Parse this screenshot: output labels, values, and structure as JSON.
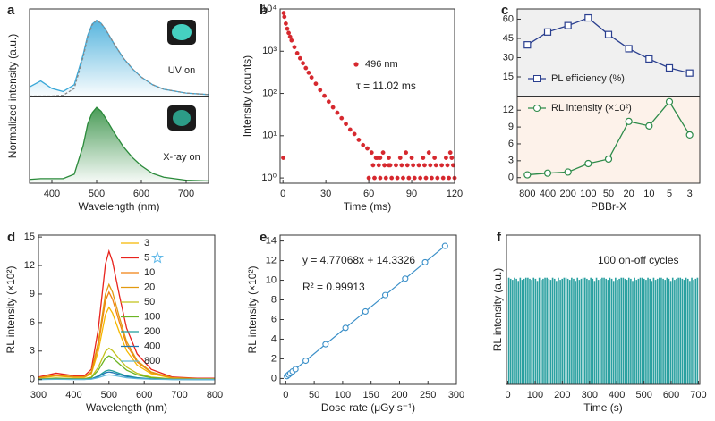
{
  "chart_data": [
    {
      "type": "line",
      "label": "a",
      "y_label": "Normalized intensity (a.u.)",
      "x_label": "Wavelength (nm)",
      "xlim": [
        350,
        750
      ],
      "xticks": [
        400,
        500,
        600,
        700
      ],
      "ylim": [
        0,
        1.15
      ],
      "y2lim": [
        0,
        1.15
      ],
      "x": [
        350,
        375,
        400,
        425,
        450,
        470,
        480,
        490,
        500,
        510,
        520,
        540,
        560,
        580,
        600,
        625,
        650,
        700,
        750
      ],
      "series": [
        {
          "name": "UV on",
          "color": "#3aa8d8",
          "fill": true,
          "values": [
            0.12,
            0.2,
            0.1,
            0.06,
            0.15,
            0.55,
            0.8,
            0.95,
            1.0,
            0.96,
            0.88,
            0.68,
            0.5,
            0.36,
            0.25,
            0.15,
            0.09,
            0.04,
            0.02
          ]
        },
        {
          "color": "#888888",
          "dash": true,
          "values": [
            0,
            0,
            0,
            0.01,
            0.1,
            0.52,
            0.78,
            0.94,
            1.0,
            0.96,
            0.88,
            0.68,
            0.5,
            0.36,
            0.25,
            0.15,
            0.09,
            0.04,
            0.02
          ]
        },
        {
          "name": "X-ray on",
          "color": "#2a8a3a",
          "fill": true,
          "axis": "y2",
          "values": [
            0.05,
            0.06,
            0.06,
            0.06,
            0.12,
            0.5,
            0.78,
            0.93,
            1.0,
            0.95,
            0.86,
            0.66,
            0.48,
            0.34,
            0.23,
            0.13,
            0.08,
            0.04,
            0.03
          ]
        }
      ]
    },
    {
      "type": "scatter",
      "label": "b",
      "log_y": true,
      "y_label": "Intensity (counts)",
      "x_label": "Time (ms)",
      "xlim": [
        -2,
        120
      ],
      "xticks": [
        0,
        30,
        60,
        90,
        120
      ],
      "ylim": [
        0.75,
        10000
      ],
      "yticks": [
        {
          "value": 1,
          "label": "10⁰"
        },
        {
          "value": 10,
          "label": "10¹"
        },
        {
          "value": 100,
          "label": "10²"
        },
        {
          "value": 1000,
          "label": "10³"
        },
        {
          "value": 10000,
          "label": "10⁴"
        }
      ],
      "annotations": [
        "τ = 11.02 ms"
      ],
      "series": [
        {
          "name": "496 nm",
          "color": "#d6282e",
          "x": [
            0.5,
            1,
            2,
            3,
            4,
            5,
            6,
            8,
            10,
            12,
            14,
            16,
            18,
            20,
            23,
            26,
            29,
            32,
            35,
            38,
            41,
            44,
            47,
            50,
            53,
            56,
            59,
            62,
            65,
            68,
            71,
            74,
            60,
            64,
            68,
            72,
            76,
            80,
            84,
            88,
            92,
            96,
            100,
            104,
            108,
            112,
            116,
            120,
            63,
            67,
            71,
            75,
            79,
            83,
            87,
            91,
            95,
            99,
            103,
            107,
            111,
            115,
            119,
            66,
            74,
            82,
            90,
            98,
            106,
            114,
            118,
            70,
            86,
            102,
            117,
            0.2
          ],
          "values": [
            8000,
            6500,
            4500,
            3400,
            2700,
            2200,
            1800,
            1250,
            900,
            680,
            520,
            400,
            310,
            240,
            170,
            120,
            88,
            64,
            47,
            35,
            26,
            19,
            14,
            11,
            8,
            6,
            5,
            4,
            3,
            3,
            2,
            2,
            1,
            1,
            1,
            1,
            1,
            1,
            1,
            1,
            1,
            1,
            1,
            1,
            1,
            1,
            1,
            1,
            2,
            2,
            2,
            2,
            2,
            2,
            2,
            2,
            2,
            2,
            2,
            2,
            2,
            2,
            2,
            3,
            3,
            3,
            3,
            3,
            3,
            3,
            3,
            4,
            4,
            4,
            4,
            3
          ]
        }
      ]
    },
    {
      "type": "line",
      "label": "c",
      "x_label": "PBBr-X",
      "categories": [
        "800",
        "400",
        "200",
        "100",
        "50",
        "20",
        "10",
        "5",
        "3"
      ],
      "ylim": [
        0,
        68
      ],
      "yticks": [
        15,
        30,
        45,
        60
      ],
      "y2lim": [
        -1,
        14.5
      ],
      "y2ticks": [
        0,
        3,
        6,
        9,
        12
      ],
      "background": [
        "#f0f0f0",
        "#fdf2ea"
      ],
      "series": [
        {
          "name": "PL efficiency (%)",
          "color": "#2a3f8f",
          "marker": "square",
          "values": [
            40,
            50,
            55,
            61,
            48,
            37,
            29,
            22,
            18
          ]
        },
        {
          "name": "RL intensity (×10²)",
          "color": "#2e8b4a",
          "marker": "circle",
          "axis": "y2",
          "values": [
            0.5,
            0.8,
            1.0,
            2.5,
            3.3,
            10,
            9.2,
            13.5,
            7.6
          ]
        }
      ]
    },
    {
      "type": "line",
      "label": "d",
      "y_label": "RL intensity (×10²)",
      "x_label": "Wavelength (nm)",
      "xlim": [
        300,
        800
      ],
      "xticks": [
        300,
        400,
        500,
        600,
        700,
        800
      ],
      "ylim": [
        -0.5,
        15.2
      ],
      "yticks": [
        0,
        3,
        6,
        9,
        12,
        15
      ],
      "x": [
        300,
        350,
        400,
        430,
        450,
        470,
        490,
        500,
        510,
        530,
        550,
        580,
        620,
        680,
        750,
        800
      ],
      "series": [
        {
          "name": "3",
          "color": "#f5b800",
          "values": [
            0.15,
            0.38,
            0.23,
            0.23,
            0.61,
            3.04,
            6.84,
            7.6,
            6.99,
            4.94,
            3.04,
            1.52,
            0.61,
            0.15,
            0.08,
            0.08
          ]
        },
        {
          "name": "5",
          "color": "#e8221c",
          "values": [
            0.27,
            0.68,
            0.41,
            0.41,
            1.08,
            5.4,
            12.15,
            13.5,
            12.42,
            8.78,
            5.4,
            2.7,
            1.08,
            0.27,
            0.14,
            0.14
          ]
        },
        {
          "name": "10",
          "color": "#f08010",
          "values": [
            0.18,
            0.46,
            0.28,
            0.28,
            0.74,
            3.68,
            8.28,
            9.2,
            8.46,
            5.98,
            3.68,
            1.84,
            0.74,
            0.18,
            0.09,
            0.09
          ]
        },
        {
          "name": "20",
          "color": "#e29a10",
          "values": [
            0.2,
            0.5,
            0.3,
            0.3,
            0.8,
            4,
            9,
            10,
            9.2,
            6.5,
            4,
            2,
            0.8,
            0.2,
            0.1,
            0.1
          ]
        },
        {
          "name": "50",
          "color": "#c2c21a",
          "values": [
            0.07,
            0.17,
            0.1,
            0.1,
            0.26,
            1.32,
            2.97,
            3.3,
            3.04,
            2.15,
            1.32,
            0.66,
            0.26,
            0.07,
            0.03,
            0.03
          ]
        },
        {
          "name": "100",
          "color": "#6cb424",
          "values": [
            0.05,
            0.13,
            0.08,
            0.08,
            0.2,
            1,
            2.25,
            2.5,
            2.3,
            1.63,
            1,
            0.5,
            0.2,
            0.05,
            0.03,
            0.03
          ]
        },
        {
          "name": "200",
          "color": "#1f9e9a",
          "values": [
            0.02,
            0.05,
            0.03,
            0.03,
            0.08,
            0.4,
            0.9,
            1,
            0.92,
            0.65,
            0.4,
            0.2,
            0.08,
            0.02,
            0.01,
            0.01
          ]
        },
        {
          "name": "400",
          "color": "#1f77b4",
          "values": [
            0.02,
            0.04,
            0.02,
            0.02,
            0.06,
            0.32,
            0.72,
            0.8,
            0.74,
            0.52,
            0.32,
            0.16,
            0.06,
            0.02,
            0.01,
            0.01
          ]
        },
        {
          "name": "800",
          "color": "#5fb8d8",
          "values": [
            0.01,
            0.03,
            0.02,
            0.02,
            0.04,
            0.2,
            0.45,
            0.5,
            0.46,
            0.33,
            0.2,
            0.1,
            0.04,
            0.01,
            0.01,
            0.01
          ]
        }
      ]
    },
    {
      "type": "scatter",
      "label": "e",
      "y_label": "RL intensity (×10²)",
      "x_label": "Dose rate (μGy s⁻¹)",
      "xlim": [
        -10,
        300
      ],
      "xticks": [
        0,
        50,
        100,
        150,
        200,
        250,
        300
      ],
      "ylim": [
        -0.6,
        14.6
      ],
      "yticks": [
        0,
        2,
        4,
        6,
        8,
        10,
        12,
        14
      ],
      "annotations": [
        "y = 4.77068x + 14.3326",
        "R² = 0.99913"
      ],
      "fit": {
        "color": "#3a8fc8",
        "x": [
          0,
          280
        ],
        "values": [
          0.14,
          13.5
        ]
      },
      "series": [
        {
          "color": "#3a8fc8",
          "open": true,
          "x": [
            2,
            5,
            8,
            12,
            17,
            35,
            70,
            105,
            140,
            175,
            210,
            245,
            280
          ],
          "values": [
            0.24,
            0.38,
            0.53,
            0.72,
            0.95,
            1.81,
            3.48,
            5.15,
            6.82,
            8.49,
            10.16,
            11.83,
            13.5
          ]
        }
      ]
    },
    {
      "type": "bar",
      "label": "f",
      "y_label": "RL intensity (a.u.)",
      "x_label": "Time (s)",
      "xlim": [
        -5,
        705
      ],
      "xticks": [
        0,
        100,
        200,
        300,
        400,
        500,
        600,
        700
      ],
      "ylim": [
        0,
        1.4
      ],
      "annotations": [
        "100 on-off cycles"
      ],
      "color": "#2aa0a0",
      "x": [
        3.5,
        10.5,
        17.5,
        24.5,
        31.5,
        38.5,
        45.5,
        52.5,
        59.5,
        66.5,
        73.5,
        80.5,
        87.5,
        94.5,
        101.5,
        108.5,
        115.5,
        122.5,
        129.5,
        136.5,
        143.5,
        150.5,
        157.5,
        164.5,
        171.5,
        178.5,
        185.5,
        192.5,
        199.5,
        206.5,
        213.5,
        220.5,
        227.5,
        234.5,
        241.5,
        248.5,
        255.5,
        262.5,
        269.5,
        276.5,
        283.5,
        290.5,
        297.5,
        304.5,
        311.5,
        318.5,
        325.5,
        332.5,
        339.5,
        346.5,
        353.5,
        360.5,
        367.5,
        374.5,
        381.5,
        388.5,
        395.5,
        402.5,
        409.5,
        416.5,
        423.5,
        430.5,
        437.5,
        444.5,
        451.5,
        458.5,
        465.5,
        472.5,
        479.5,
        486.5,
        493.5,
        500.5,
        507.5,
        514.5,
        521.5,
        528.5,
        535.5,
        542.5,
        549.5,
        556.5,
        563.5,
        570.5,
        577.5,
        584.5,
        591.5,
        598.5,
        605.5,
        612.5,
        619.5,
        626.5,
        633.5,
        640.5,
        647.5,
        654.5,
        661.5,
        668.5,
        675.5,
        682.5,
        689.5,
        696.5
      ],
      "values": [
        1,
        0.99,
        0.98,
        1,
        0.99,
        0.97,
        1,
        0.98,
        0.99,
        1,
        1,
        0.99,
        0.98,
        1,
        0.99,
        0.97,
        1,
        0.98,
        0.99,
        1,
        1,
        0.99,
        0.98,
        1,
        0.99,
        0.97,
        1,
        0.98,
        0.99,
        1,
        1,
        0.99,
        0.98,
        1,
        0.99,
        0.97,
        1,
        0.98,
        0.99,
        1,
        1,
        0.99,
        0.98,
        1,
        0.99,
        0.97,
        1,
        0.98,
        0.99,
        1,
        1,
        0.99,
        0.98,
        1,
        0.99,
        0.97,
        1,
        0.98,
        0.99,
        1,
        1,
        0.99,
        0.98,
        1,
        0.99,
        0.97,
        1,
        0.98,
        0.99,
        1,
        1,
        0.99,
        0.98,
        1,
        0.99,
        0.97,
        1,
        0.98,
        0.99,
        1,
        1,
        0.99,
        0.98,
        1,
        0.99,
        0.97,
        1,
        0.98,
        0.99,
        1,
        1,
        0.99,
        0.98,
        1,
        0.99,
        0.97,
        1,
        0.98,
        0.99,
        1
      ]
    }
  ]
}
